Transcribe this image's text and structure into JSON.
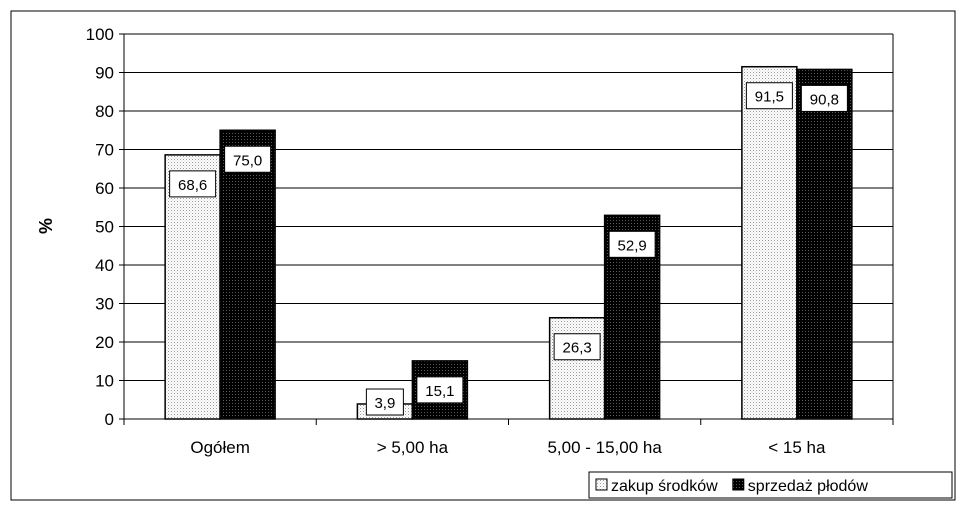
{
  "chart_data": {
    "type": "bar",
    "categories": [
      "Ogółem",
      "> 5,00 ha",
      "5,00 - 15,00 ha",
      "< 15 ha"
    ],
    "series": [
      {
        "name": "zakup środków",
        "values": [
          68.6,
          3.9,
          26.3,
          91.5
        ],
        "labels": [
          "68,6",
          "3,9",
          "26,3",
          "91,5"
        ],
        "pattern": "light-dotted"
      },
      {
        "name": "sprzedaż płodów",
        "values": [
          75.0,
          15.1,
          52.9,
          90.8
        ],
        "labels": [
          "75,0",
          "15,1",
          "52,9",
          "90,8"
        ],
        "pattern": "dark-dotted"
      }
    ],
    "ylabel": "%",
    "ylim": [
      0,
      100
    ],
    "yticks": [
      0,
      10,
      20,
      30,
      40,
      50,
      60,
      70,
      80,
      90,
      100
    ],
    "grid": true,
    "legend": "bottom-right"
  }
}
